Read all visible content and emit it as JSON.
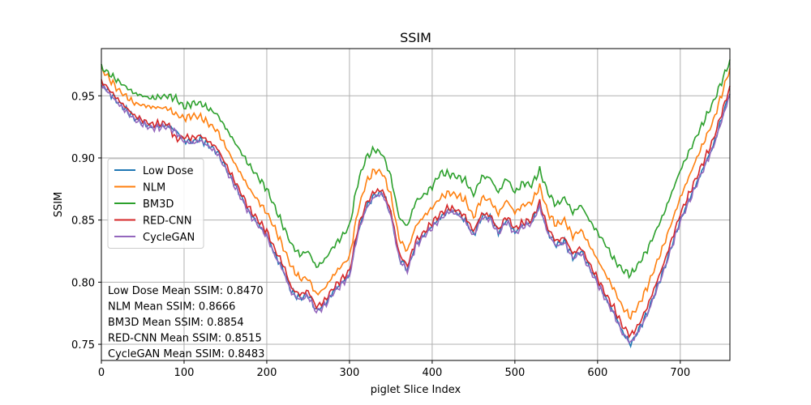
{
  "chart_data": {
    "type": "line",
    "title": "SSIM",
    "xlabel": "piglet Slice Index",
    "ylabel": "SSIM",
    "xlim": [
      0,
      760
    ],
    "ylim": [
      0.737,
      0.988
    ],
    "xticks": [
      0,
      100,
      200,
      300,
      400,
      500,
      600,
      700
    ],
    "yticks": [
      0.75,
      0.8,
      0.85,
      0.9,
      0.95
    ],
    "ytick_labels": [
      "0.75",
      "0.80",
      "0.85",
      "0.90",
      "0.95"
    ],
    "grid": true,
    "legend_position": "center-left",
    "x": [
      0,
      20,
      40,
      60,
      80,
      90,
      100,
      110,
      120,
      140,
      160,
      180,
      200,
      210,
      220,
      230,
      240,
      250,
      260,
      270,
      280,
      290,
      300,
      310,
      320,
      330,
      340,
      350,
      360,
      370,
      380,
      390,
      400,
      410,
      420,
      430,
      440,
      450,
      460,
      470,
      480,
      490,
      500,
      510,
      520,
      530,
      540,
      550,
      560,
      570,
      580,
      590,
      600,
      610,
      620,
      630,
      640,
      650,
      660,
      680,
      700,
      720,
      740,
      760
    ],
    "series": [
      {
        "name": "Low Dose",
        "color": "#1f77b4",
        "values": [
          0.96,
          0.945,
          0.932,
          0.925,
          0.926,
          0.922,
          0.914,
          0.913,
          0.915,
          0.905,
          0.88,
          0.855,
          0.838,
          0.822,
          0.81,
          0.792,
          0.787,
          0.79,
          0.777,
          0.782,
          0.792,
          0.799,
          0.806,
          0.84,
          0.86,
          0.87,
          0.872,
          0.855,
          0.82,
          0.81,
          0.83,
          0.838,
          0.845,
          0.852,
          0.858,
          0.856,
          0.85,
          0.838,
          0.853,
          0.852,
          0.84,
          0.85,
          0.84,
          0.846,
          0.848,
          0.862,
          0.84,
          0.83,
          0.833,
          0.82,
          0.825,
          0.812,
          0.8,
          0.787,
          0.775,
          0.76,
          0.75,
          0.762,
          0.775,
          0.81,
          0.85,
          0.88,
          0.91,
          0.953
        ]
      },
      {
        "name": "NLM",
        "color": "#ff7f0e",
        "values": [
          0.972,
          0.955,
          0.944,
          0.941,
          0.94,
          0.935,
          0.932,
          0.934,
          0.933,
          0.922,
          0.897,
          0.874,
          0.856,
          0.843,
          0.828,
          0.812,
          0.803,
          0.803,
          0.79,
          0.795,
          0.805,
          0.813,
          0.82,
          0.857,
          0.88,
          0.89,
          0.888,
          0.87,
          0.835,
          0.825,
          0.845,
          0.853,
          0.86,
          0.868,
          0.872,
          0.87,
          0.866,
          0.852,
          0.868,
          0.866,
          0.855,
          0.866,
          0.856,
          0.862,
          0.864,
          0.877,
          0.856,
          0.846,
          0.85,
          0.837,
          0.842,
          0.83,
          0.818,
          0.806,
          0.794,
          0.78,
          0.772,
          0.782,
          0.796,
          0.83,
          0.868,
          0.9,
          0.93,
          0.972
        ]
      },
      {
        "name": "BM3D",
        "color": "#2ca02c",
        "values": [
          0.973,
          0.962,
          0.952,
          0.948,
          0.95,
          0.948,
          0.941,
          0.944,
          0.944,
          0.935,
          0.914,
          0.893,
          0.875,
          0.86,
          0.845,
          0.83,
          0.822,
          0.825,
          0.812,
          0.818,
          0.828,
          0.836,
          0.845,
          0.88,
          0.9,
          0.907,
          0.903,
          0.885,
          0.852,
          0.845,
          0.865,
          0.87,
          0.877,
          0.888,
          0.887,
          0.885,
          0.882,
          0.87,
          0.885,
          0.884,
          0.872,
          0.884,
          0.872,
          0.88,
          0.878,
          0.89,
          0.872,
          0.862,
          0.868,
          0.856,
          0.862,
          0.85,
          0.84,
          0.83,
          0.818,
          0.81,
          0.806,
          0.815,
          0.826,
          0.855,
          0.89,
          0.918,
          0.945,
          0.978
        ]
      },
      {
        "name": "RED-CNN",
        "color": "#d62728",
        "values": [
          0.962,
          0.947,
          0.934,
          0.927,
          0.928,
          0.915,
          0.917,
          0.916,
          0.918,
          0.908,
          0.883,
          0.858,
          0.841,
          0.826,
          0.814,
          0.795,
          0.79,
          0.793,
          0.78,
          0.785,
          0.795,
          0.802,
          0.809,
          0.843,
          0.863,
          0.873,
          0.874,
          0.857,
          0.823,
          0.813,
          0.833,
          0.84,
          0.848,
          0.855,
          0.86,
          0.858,
          0.853,
          0.841,
          0.855,
          0.854,
          0.842,
          0.853,
          0.843,
          0.848,
          0.85,
          0.864,
          0.843,
          0.833,
          0.836,
          0.823,
          0.828,
          0.815,
          0.803,
          0.79,
          0.779,
          0.765,
          0.757,
          0.766,
          0.78,
          0.815,
          0.855,
          0.885,
          0.915,
          0.957
        ]
      },
      {
        "name": "CycleGAN",
        "color": "#9467bd",
        "values": [
          0.959,
          0.944,
          0.931,
          0.924,
          0.925,
          0.921,
          0.913,
          0.912,
          0.914,
          0.904,
          0.879,
          0.854,
          0.837,
          0.821,
          0.809,
          0.791,
          0.786,
          0.789,
          0.776,
          0.781,
          0.791,
          0.798,
          0.805,
          0.839,
          0.859,
          0.869,
          0.871,
          0.854,
          0.819,
          0.809,
          0.829,
          0.837,
          0.844,
          0.851,
          0.857,
          0.855,
          0.849,
          0.837,
          0.852,
          0.851,
          0.839,
          0.849,
          0.839,
          0.845,
          0.847,
          0.861,
          0.839,
          0.829,
          0.832,
          0.819,
          0.824,
          0.811,
          0.799,
          0.786,
          0.774,
          0.759,
          0.751,
          0.761,
          0.774,
          0.809,
          0.849,
          0.879,
          0.909,
          0.951
        ]
      }
    ],
    "annotations": [
      "Low Dose Mean SSIM: 0.8470",
      "NLM Mean SSIM: 0.8666",
      "BM3D Mean SSIM: 0.8854",
      "RED-CNN Mean SSIM: 0.8515",
      "CycleGAN Mean SSIM: 0.8483"
    ]
  }
}
